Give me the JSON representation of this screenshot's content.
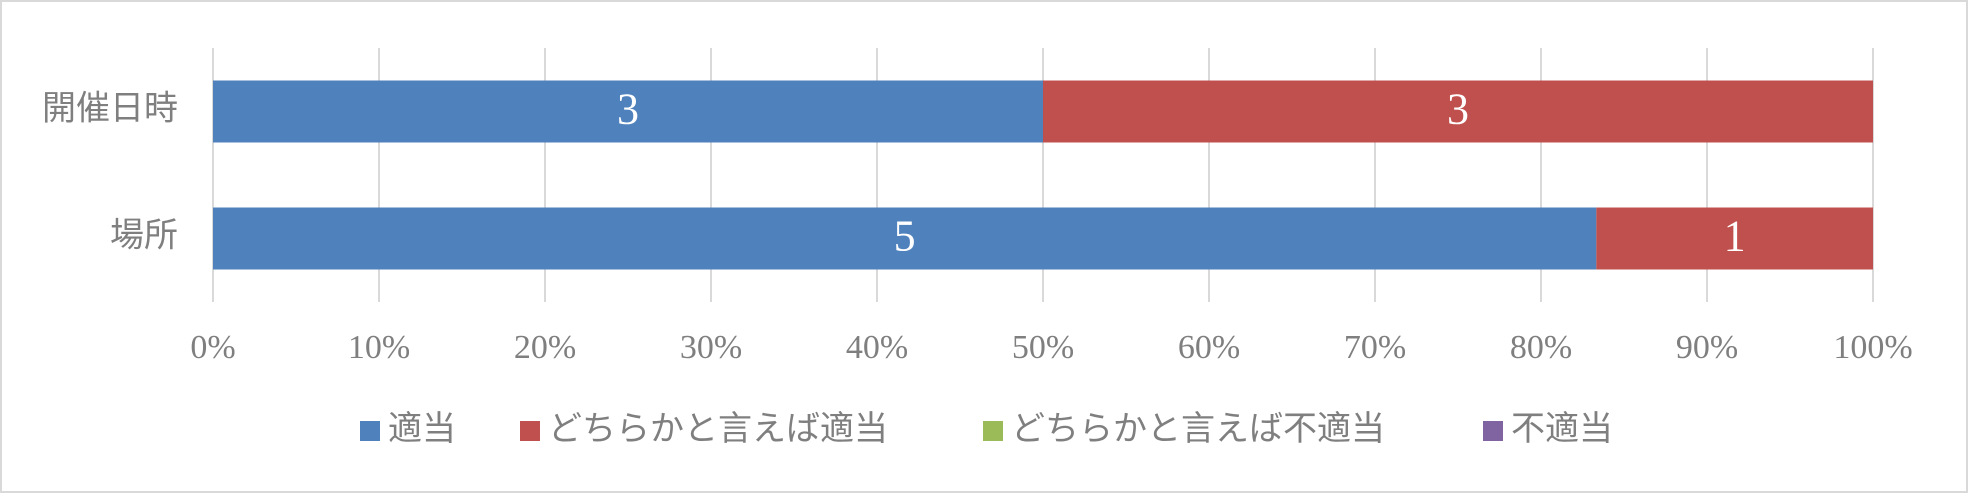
{
  "chart_data": {
    "type": "bar",
    "orientation": "horizontal",
    "stack": "percent",
    "categories": [
      "開催日時",
      "場所"
    ],
    "series": [
      {
        "name": "適当",
        "color": "#4f81bd",
        "values": [
          3,
          5
        ]
      },
      {
        "name": "どちらかと言えば適当",
        "color": "#c0504d",
        "values": [
          3,
          1
        ]
      },
      {
        "name": "どちらかと言えば不適当",
        "color": "#9bbb59",
        "values": [
          0,
          0
        ]
      },
      {
        "name": "不適当",
        "color": "#8064a2",
        "values": [
          0,
          0
        ]
      }
    ],
    "xlim": [
      0,
      100
    ],
    "xticks": [
      {
        "value": 0,
        "label": "0%"
      },
      {
        "value": 10,
        "label": "10%"
      },
      {
        "value": 20,
        "label": "20%"
      },
      {
        "value": 30,
        "label": "30%"
      },
      {
        "value": 40,
        "label": "40%"
      },
      {
        "value": 50,
        "label": "50%"
      },
      {
        "value": 60,
        "label": "60%"
      },
      {
        "value": 70,
        "label": "70%"
      },
      {
        "value": 80,
        "label": "80%"
      },
      {
        "value": 90,
        "label": "90%"
      },
      {
        "value": 100,
        "label": "100%"
      }
    ],
    "grid": true,
    "legend": "bottom"
  }
}
